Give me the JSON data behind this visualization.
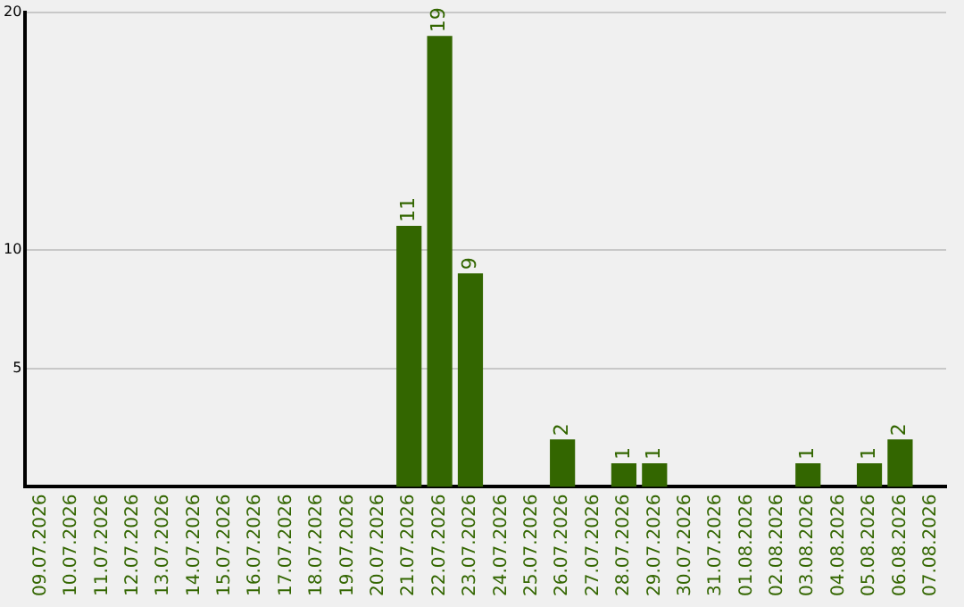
{
  "chart_data": {
    "type": "bar",
    "categories": [
      "09.07.2026",
      "10.07.2026",
      "11.07.2026",
      "12.07.2026",
      "13.07.2026",
      "14.07.2026",
      "15.07.2026",
      "16.07.2026",
      "17.07.2026",
      "18.07.2026",
      "19.07.2026",
      "20.07.2026",
      "21.07.2026",
      "22.07.2026",
      "23.07.2026",
      "24.07.2026",
      "25.07.2026",
      "26.07.2026",
      "27.07.2026",
      "28.07.2026",
      "29.07.2026",
      "30.07.2026",
      "31.07.2026",
      "01.08.2026",
      "02.08.2026",
      "03.08.2026",
      "04.08.2026",
      "05.08.2026",
      "06.08.2026",
      "07.08.2026"
    ],
    "values": [
      0,
      0,
      0,
      0,
      0,
      0,
      0,
      0,
      0,
      0,
      0,
      0,
      11,
      19,
      9,
      0,
      0,
      2,
      0,
      1,
      1,
      0,
      0,
      0,
      0,
      1,
      0,
      1,
      2,
      0
    ],
    "value_labels": [
      null,
      null,
      null,
      null,
      null,
      null,
      null,
      null,
      null,
      null,
      null,
      null,
      "11",
      "19",
      "9",
      null,
      null,
      "2",
      null,
      "1",
      "1",
      null,
      null,
      null,
      null,
      "1",
      null,
      "1",
      "2",
      null
    ],
    "color": "#336600",
    "ylim": [
      0,
      20
    ],
    "yticks": [
      5,
      10,
      20
    ],
    "grid": "y",
    "legend": false
  }
}
